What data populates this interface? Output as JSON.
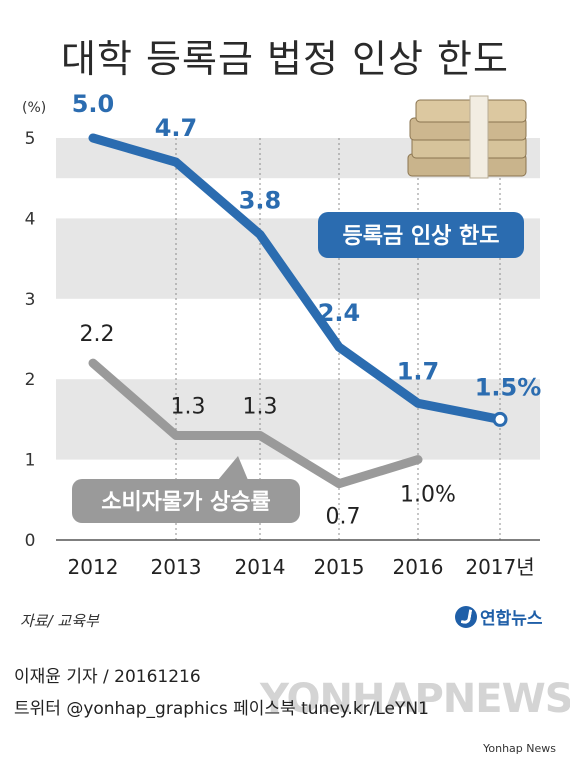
{
  "header": {
    "title": "대학 등록금 법정 인상 한도"
  },
  "chart_data": {
    "type": "line",
    "title": "대학 등록금 법정 인상 한도",
    "unit": "(%)",
    "categories": [
      "2012",
      "2013",
      "2014",
      "2015",
      "2016",
      "2017년"
    ],
    "ylim": [
      0,
      5
    ],
    "yticks": [
      "0",
      "1",
      "2",
      "3",
      "4",
      "5"
    ],
    "grid": "horizontal bands",
    "series": [
      {
        "name": "등록금 인상 한도",
        "color": "#2b6cb0",
        "values": [
          5.0,
          4.7,
          3.8,
          2.4,
          1.7,
          1.5
        ],
        "labels": [
          "5.0",
          "4.7",
          "3.8",
          "2.4",
          "1.7",
          "1.5%"
        ]
      },
      {
        "name": "소비자물가 상승률",
        "color": "#9a9a9a",
        "values": [
          2.2,
          1.3,
          1.3,
          0.7,
          1.0,
          null
        ],
        "labels": [
          "2.2",
          "1.3",
          "1.3",
          "0.7",
          "1.0%",
          ""
        ]
      }
    ]
  },
  "footer": {
    "source": "자료/ 교육부",
    "brand": "연합뉴스",
    "reporter": "이재윤 기자 / 20161216",
    "social": "트위터 @yonhap_graphics  페이스북 tuney.kr/LeYN1",
    "watermark": "YONHAPNEWS",
    "credit": "Yonhap News"
  },
  "colors": {
    "band": "#e6e6e6",
    "blue": "#2b6cb0",
    "gray": "#9a9a9a",
    "text": "#222222"
  },
  "icons": {
    "money": "money-stack-icon"
  }
}
